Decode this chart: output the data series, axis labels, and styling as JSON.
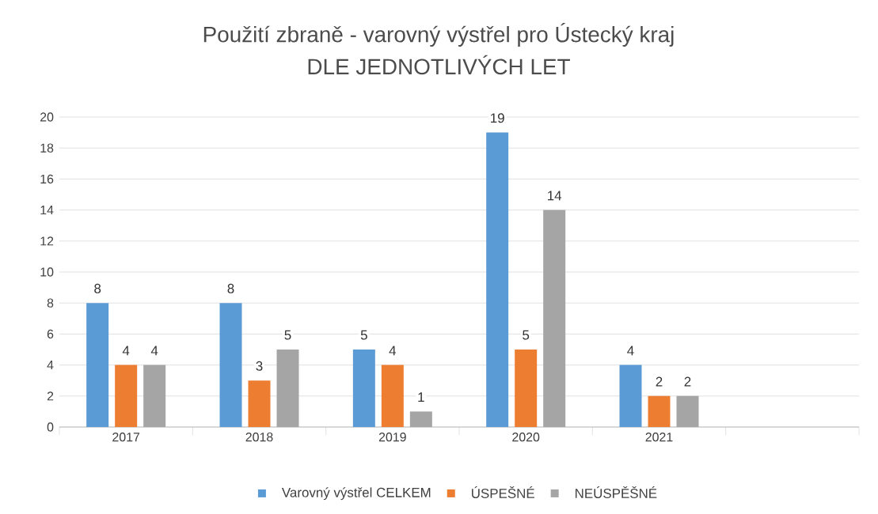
{
  "chart_data": {
    "type": "bar",
    "title": "Použití zbraně - varovný výstřel pro Ústecký kraj",
    "subtitle": "DLE JEDNOTLIVÝCH LET",
    "categories": [
      "2017",
      "2018",
      "2019",
      "2020",
      "2021",
      null
    ],
    "series": [
      {
        "name": "Varovný výstřel CELKEM",
        "color": "#5b9bd5",
        "values": [
          8,
          8,
          5,
          19,
          4,
          null
        ]
      },
      {
        "name": "ÚSPEŠNÉ",
        "color": "#ed7d31",
        "values": [
          4,
          3,
          4,
          5,
          2,
          null
        ]
      },
      {
        "name": "NEÚSPĚŠNÉ",
        "color": "#a5a5a5",
        "values": [
          4,
          5,
          1,
          14,
          2,
          null
        ]
      }
    ],
    "ylim": [
      0,
      20
    ],
    "yticks": [
      0,
      2,
      4,
      6,
      8,
      10,
      12,
      14,
      16,
      18,
      20
    ],
    "grid": "y",
    "legend": "bottom",
    "data_labels": true
  }
}
